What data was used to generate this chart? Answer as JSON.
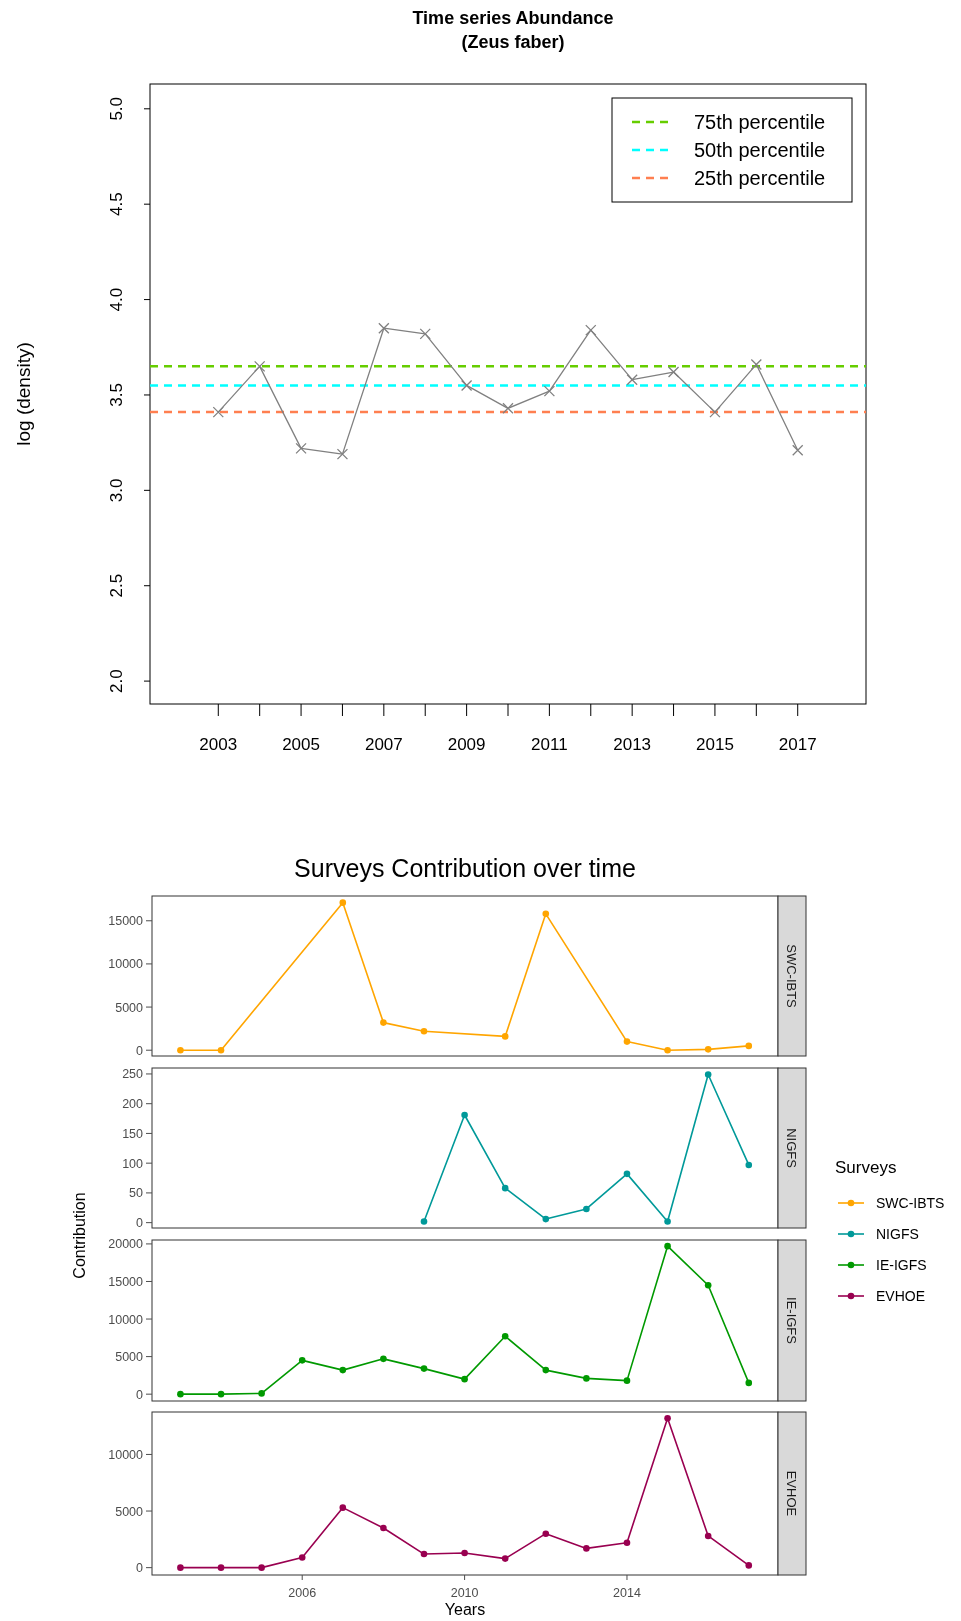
{
  "chart_data": [
    {
      "type": "line",
      "title": "Time series Abundance",
      "subtitle": "(Zeus faber)",
      "ylabel": "log (density)",
      "x": [
        2003,
        2004,
        2005,
        2006,
        2007,
        2008,
        2009,
        2010,
        2011,
        2012,
        2013,
        2014,
        2015,
        2016,
        2017
      ],
      "series": [
        {
          "color": "#808080",
          "values": [
            3.41,
            3.65,
            3.22,
            3.19,
            3.85,
            3.82,
            3.55,
            3.43,
            3.52,
            3.84,
            3.58,
            3.62,
            3.41,
            3.66,
            3.21
          ]
        }
      ],
      "marker": "cross",
      "xlim": [
        2001.35,
        2018.65
      ],
      "ylim": [
        1.88,
        5.13
      ],
      "xticks": [
        2003,
        {
          "value": 2004,
          "label": null
        },
        2005,
        {
          "value": 2006,
          "label": null
        },
        2007,
        {
          "value": 2008,
          "label": null
        },
        2009,
        {
          "value": 2010,
          "label": null
        },
        2011,
        {
          "value": 2012,
          "label": null
        },
        2013,
        {
          "value": 2014,
          "label": null
        },
        2015,
        {
          "value": 2016,
          "label": null
        },
        2017
      ],
      "yticks": [
        {
          "value": 2,
          "label": "2.0"
        },
        2.5,
        {
          "value": 3,
          "label": "3.0"
        },
        3.5,
        {
          "value": 4,
          "label": "4.0"
        },
        4.5,
        {
          "value": 5,
          "label": "5.0"
        }
      ],
      "ref_lines": [
        {
          "axis": "y",
          "value": 3.65,
          "label": "75th percentile",
          "color": "#66cd00",
          "line_style": "dashed"
        },
        {
          "axis": "y",
          "value": 3.55,
          "label": "50th percentile",
          "color": "#00ffff",
          "line_style": "dashed"
        },
        {
          "axis": "y",
          "value": 3.41,
          "label": "25th percentile",
          "color": "#ff7f50",
          "line_style": "dashed"
        }
      ],
      "legend": "top right"
    },
    {
      "type": "line",
      "title": "Surveys Contribution over time",
      "legend_title": "Surveys",
      "legend": "right",
      "marker": "circle",
      "tick_labels": "y",
      "xlim": [
        2002.3,
        2017.72
      ],
      "ylim": [
        -670,
        17870
      ],
      "yticks": [
        0,
        5000,
        10000,
        15000
      ],
      "series": [
        {
          "name": "SWC-IBTS",
          "color": "#ffa500",
          "x": [
            2003,
            2004,
            2007,
            2008,
            2009,
            2011,
            2012,
            2014,
            2015,
            2016,
            2017
          ],
          "values": [
            0,
            0,
            17100,
            3200,
            2200,
            1600,
            15800,
            1000,
            0,
            100,
            500
          ]
        }
      ]
    },
    {
      "type": "line",
      "legend": "right",
      "marker": "circle",
      "tick_labels": "y",
      "ylabel": "Contribution",
      "xlim": [
        2002.3,
        2017.72
      ],
      "ylim": [
        -9,
        260
      ],
      "yticks": [
        0,
        50,
        100,
        150,
        200,
        250
      ],
      "series": [
        {
          "name": "NIGFS",
          "color": "#009999",
          "x": [
            2009,
            2010,
            2011,
            2012,
            2013,
            2014,
            2015,
            2016,
            2017
          ],
          "values": [
            2,
            181,
            58,
            6,
            23,
            82,
            2,
            249,
            97
          ]
        }
      ]
    },
    {
      "type": "line",
      "legend": "right",
      "marker": "circle",
      "tick_labels": "y",
      "xlim": [
        2002.3,
        2017.72
      ],
      "ylim": [
        -910,
        20520
      ],
      "yticks": [
        0,
        5000,
        10000,
        15000,
        20000
      ],
      "series": [
        {
          "name": "IE-IGFS",
          "color": "#009900",
          "x": [
            2003,
            2004,
            2005,
            2006,
            2007,
            2008,
            2009,
            2010,
            2011,
            2012,
            2013,
            2014,
            2015,
            2016,
            2017
          ],
          "values": [
            0,
            0,
            100,
            4500,
            3200,
            4700,
            3400,
            2000,
            7700,
            3200,
            2100,
            1800,
            19700,
            14500,
            1500
          ]
        }
      ]
    },
    {
      "type": "line",
      "legend": "right",
      "marker": "circle",
      "xlabel": "Years",
      "xlim": [
        2002.3,
        2017.72
      ],
      "xticks": [
        2006,
        2010,
        2014
      ],
      "ylim": [
        -650,
        13750
      ],
      "yticks": [
        0,
        5000,
        10000
      ],
      "series": [
        {
          "name": "EVHOE",
          "color": "#990050",
          "x": [
            2003,
            2004,
            2005,
            2006,
            2007,
            2008,
            2009,
            2010,
            2011,
            2012,
            2013,
            2014,
            2015,
            2016,
            2017
          ],
          "values": [
            0,
            0,
            0,
            900,
            5300,
            3500,
            1200,
            1300,
            800,
            3000,
            1700,
            2200,
            13200,
            2800,
            200
          ]
        }
      ]
    }
  ]
}
